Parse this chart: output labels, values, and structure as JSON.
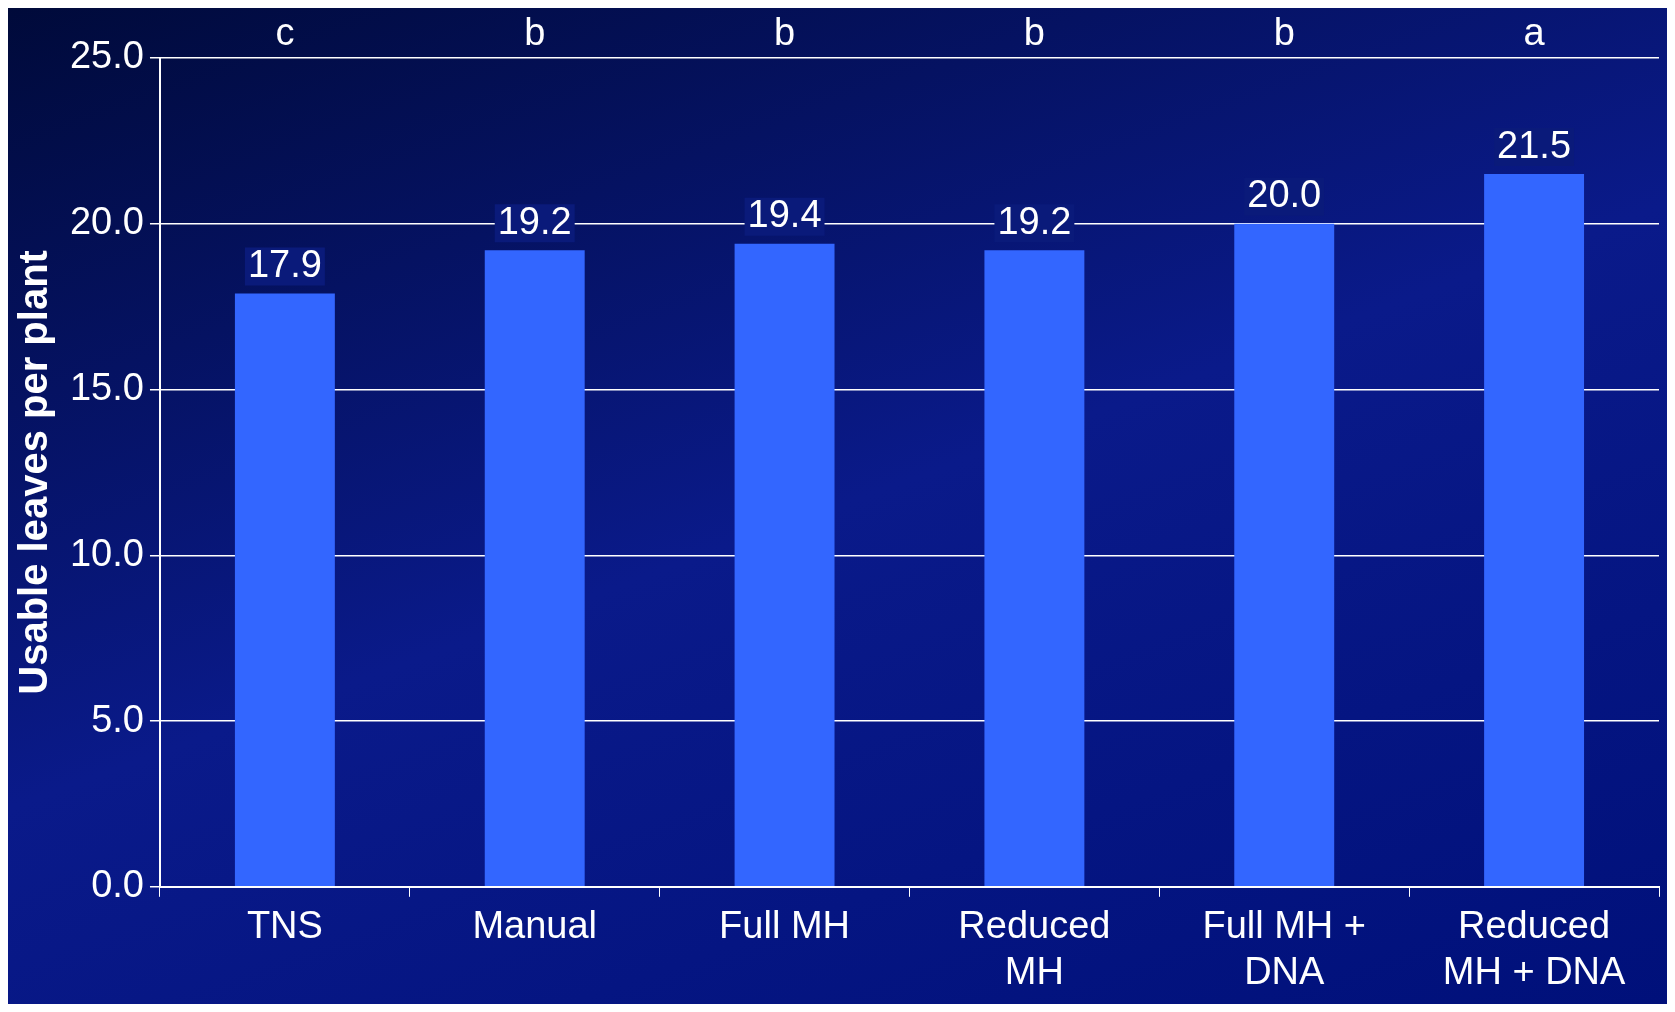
{
  "chart_data": {
    "type": "bar",
    "ylabel": "Usable leaves per plant",
    "categories": [
      "TNS",
      "Manual",
      "Full MH",
      "Reduced MH",
      "Full MH + DNA",
      "Reduced MH + DNA"
    ],
    "values": [
      17.9,
      19.2,
      19.4,
      19.2,
      20.0,
      21.5
    ],
    "color": "#3366ff",
    "value_labels": [
      "17.9",
      "19.2",
      "19.4",
      "19.2",
      "20.0",
      "21.5"
    ],
    "ylim": [
      0,
      25
    ],
    "yticks": [
      {
        "value": 0,
        "label": "0.0"
      },
      {
        "value": 5,
        "label": "5.0"
      },
      {
        "value": 10,
        "label": "10.0"
      },
      {
        "value": 15,
        "label": "15.0"
      },
      {
        "value": 20,
        "label": "20.0"
      },
      {
        "value": 25,
        "label": "25.0"
      }
    ],
    "grid": "y",
    "legend": false,
    "annotations": [
      "c",
      "b",
      "b",
      "b",
      "b",
      "a"
    ]
  }
}
